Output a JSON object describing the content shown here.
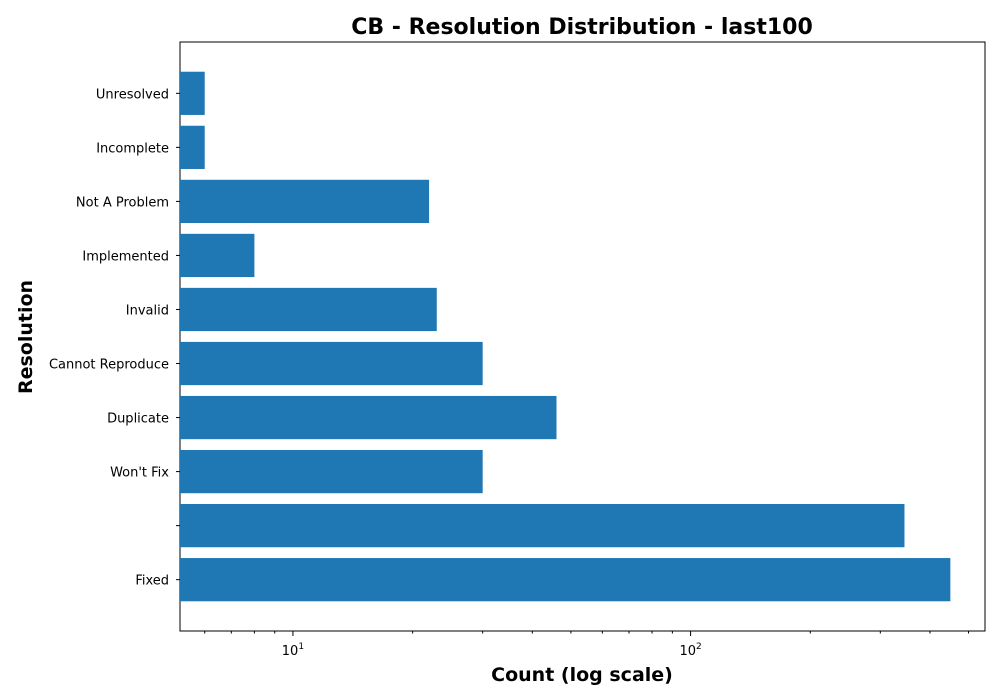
{
  "chart_data": {
    "type": "bar",
    "orientation": "horizontal",
    "title": "CB - Resolution Distribution - last100",
    "xlabel": "Count (log scale)",
    "ylabel": "Resolution",
    "x_scale": "log",
    "xlim": [
      5.2,
      550
    ],
    "x_major_ticks": [
      10,
      100
    ],
    "x_major_tick_labels": [
      "10",
      "10"
    ],
    "x_major_tick_exponents": [
      "1",
      "2"
    ],
    "grid": false,
    "bar_color": "#1f77b4",
    "categories": [
      "Fixed",
      "",
      "Won't Fix",
      "Duplicate",
      "Cannot Reproduce",
      "Invalid",
      "Implemented",
      "Not A Problem",
      "Incomplete",
      "Unresolved"
    ],
    "values": [
      450,
      345,
      30,
      46,
      30,
      23,
      8,
      22,
      6,
      6
    ]
  }
}
